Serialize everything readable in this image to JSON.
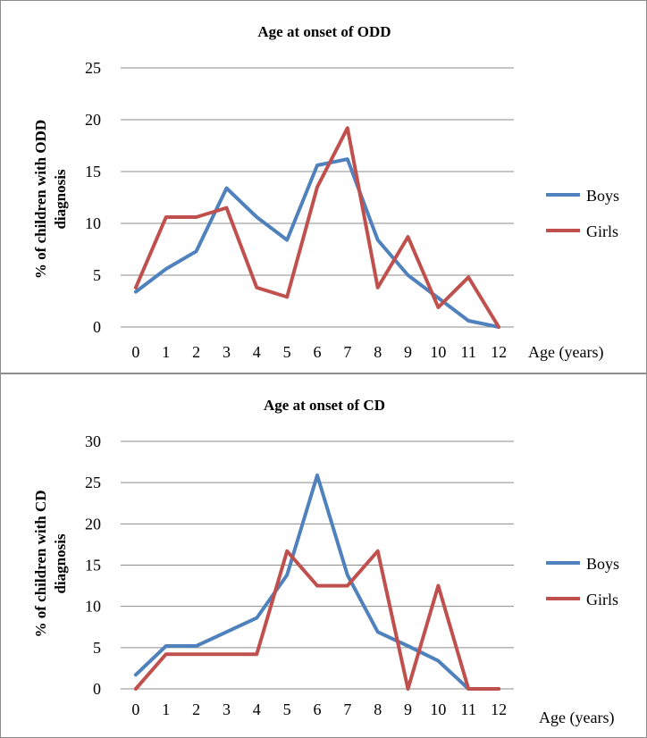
{
  "chart_data": [
    {
      "type": "line",
      "title": "Age at onset of ODD",
      "ylabel_lines": [
        "% of children with ODD",
        "diagnosis"
      ],
      "xlabel": "Age (years)",
      "categories": [
        "0",
        "1",
        "2",
        "3",
        "4",
        "5",
        "6",
        "7",
        "8",
        "9",
        "10",
        "11",
        "12"
      ],
      "ylim": [
        0,
        25
      ],
      "yticks": [
        0,
        5,
        10,
        15,
        20,
        25
      ],
      "grid": true,
      "legend_position": "right",
      "series": [
        {
          "name": "Boys",
          "color": "#4f81bd",
          "values": [
            3.4,
            5.6,
            7.3,
            13.4,
            10.6,
            8.4,
            15.6,
            16.2,
            8.4,
            5.0,
            2.8,
            0.6,
            0
          ]
        },
        {
          "name": "Girls",
          "color": "#c0504d",
          "values": [
            3.8,
            10.6,
            10.6,
            11.5,
            3.8,
            2.9,
            13.5,
            19.2,
            3.8,
            8.7,
            1.9,
            4.8,
            0
          ]
        }
      ]
    },
    {
      "type": "line",
      "title": "Age at onset of CD",
      "ylabel_lines": [
        "% of children with CD",
        "diagnosis"
      ],
      "xlabel": "Age (years)",
      "categories": [
        "0",
        "1",
        "2",
        "3",
        "4",
        "5",
        "6",
        "7",
        "8",
        "9",
        "10",
        "11",
        "12"
      ],
      "ylim": [
        0,
        30
      ],
      "yticks": [
        0,
        5,
        10,
        15,
        20,
        25,
        30
      ],
      "grid": true,
      "legend_position": "right",
      "series": [
        {
          "name": "Boys",
          "color": "#4f81bd",
          "values": [
            1.7,
            5.2,
            5.2,
            6.9,
            8.6,
            13.8,
            25.9,
            13.8,
            6.9,
            5.2,
            3.4,
            0,
            0
          ]
        },
        {
          "name": "Girls",
          "color": "#c0504d",
          "values": [
            0,
            4.2,
            4.2,
            4.2,
            4.2,
            16.7,
            12.5,
            12.5,
            16.7,
            0,
            12.5,
            0,
            0
          ]
        }
      ]
    }
  ]
}
